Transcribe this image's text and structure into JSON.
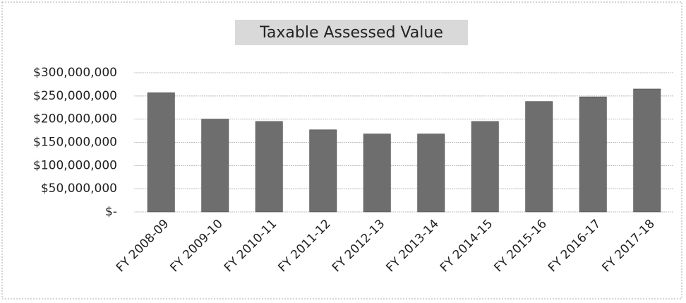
{
  "chart_data": {
    "type": "bar",
    "title": "Taxable Assessed Value",
    "categories": [
      "FY 2008-09",
      "FY 2009-10",
      "FY 2010-11",
      "FY 2011-12",
      "FY 2012-13",
      "FY 2013-14",
      "FY 2014-15",
      "FY 2015-16",
      "FY 2016-17",
      "FY 2017-18"
    ],
    "values": [
      257000000,
      200000000,
      195000000,
      177000000,
      168000000,
      168000000,
      195000000,
      238000000,
      248000000,
      265000000
    ],
    "color": "#6e6e6e",
    "ylim": [
      0,
      300000000
    ],
    "yticks": [
      {
        "value": 0,
        "label": "$-"
      },
      {
        "value": 50000000,
        "label": "$50,000,000"
      },
      {
        "value": 100000000,
        "label": "$100,000,000"
      },
      {
        "value": 150000000,
        "label": "$150,000,000"
      },
      {
        "value": 200000000,
        "label": "$200,000,000"
      },
      {
        "value": 250000000,
        "label": "$250,000,000"
      },
      {
        "value": 300000000,
        "label": "$300,000,000"
      }
    ],
    "grid": true
  }
}
